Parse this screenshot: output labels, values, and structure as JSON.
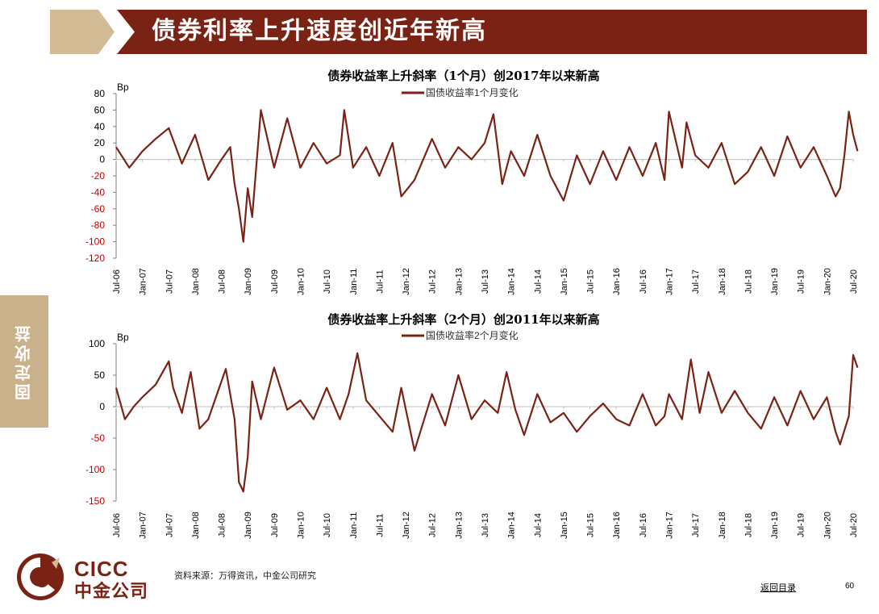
{
  "page": {
    "title": "债券利率上升速度创近年新高",
    "side_tab": "固定收益",
    "source": "资料来源：万得资讯，中金公司研究",
    "back_link": "返回目录",
    "page_number": "60",
    "logo_en": "CICC",
    "logo_cn": "中金公司"
  },
  "colors": {
    "brand": "#7a2315",
    "accent": "#d3bb95",
    "series": "#7a2315",
    "negative_tick": "#c00000"
  },
  "chart_data": [
    {
      "type": "line",
      "title": "债券收益率上升斜率（1个月）创2017年以来新高",
      "ylabel": "Bp",
      "legend_position": "top-center",
      "grid": false,
      "ylim": [
        -120,
        80
      ],
      "yticks": [
        80,
        60,
        40,
        20,
        0,
        -20,
        -40,
        -60,
        -80,
        -100,
        -120
      ],
      "x_tick_labels": [
        "Jul-06",
        "Jan-07",
        "Jul-07",
        "Jan-08",
        "Jul-08",
        "Jan-09",
        "Jul-09",
        "Jan-10",
        "Jul-10",
        "Jan-11",
        "Jul-11",
        "Jan-12",
        "Jul-12",
        "Jan-13",
        "Jul-13",
        "Jan-14",
        "Jul-14",
        "Jan-15",
        "Jul-15",
        "Jan-16",
        "Jul-16",
        "Jan-17",
        "Jul-17",
        "Jan-18",
        "Jul-18",
        "Jan-19",
        "Jul-19",
        "Jan-20",
        "Jul-20"
      ],
      "x": [
        "2006-07",
        "2006-10",
        "2007-01",
        "2007-04",
        "2007-07",
        "2007-10",
        "2008-01",
        "2008-04",
        "2008-07",
        "2008-09",
        "2008-10",
        "2008-11",
        "2008-12",
        "2009-01",
        "2009-02",
        "2009-04",
        "2009-07",
        "2009-10",
        "2010-01",
        "2010-04",
        "2010-07",
        "2010-10",
        "2010-11",
        "2011-01",
        "2011-04",
        "2011-07",
        "2011-10",
        "2011-12",
        "2012-03",
        "2012-07",
        "2012-10",
        "2013-01",
        "2013-04",
        "2013-07",
        "2013-09",
        "2013-11",
        "2014-01",
        "2014-04",
        "2014-07",
        "2014-10",
        "2015-01",
        "2015-04",
        "2015-07",
        "2015-10",
        "2016-01",
        "2016-04",
        "2016-07",
        "2016-10",
        "2016-12",
        "2017-01",
        "2017-04",
        "2017-05",
        "2017-07",
        "2017-10",
        "2018-01",
        "2018-04",
        "2018-07",
        "2018-10",
        "2019-01",
        "2019-04",
        "2019-07",
        "2019-10",
        "2020-01",
        "2020-03",
        "2020-04",
        "2020-05",
        "2020-06",
        "2020-07",
        "2020-08"
      ],
      "series": [
        {
          "name": "国债收益率1个月变化",
          "values": [
            15,
            -10,
            10,
            25,
            38,
            -5,
            30,
            -25,
            0,
            15,
            -30,
            -60,
            -100,
            -35,
            -70,
            60,
            -10,
            50,
            -10,
            20,
            -5,
            5,
            60,
            -10,
            15,
            -20,
            20,
            -45,
            -25,
            25,
            -10,
            15,
            0,
            20,
            55,
            -30,
            10,
            -20,
            30,
            -20,
            -50,
            5,
            -30,
            10,
            -25,
            15,
            -20,
            20,
            -25,
            58,
            -10,
            45,
            5,
            -10,
            20,
            -30,
            -15,
            15,
            -20,
            28,
            -10,
            15,
            -20,
            -45,
            -35,
            5,
            58,
            30,
            10
          ]
        }
      ]
    },
    {
      "type": "line",
      "title": "债券收益率上升斜率（2个月）创2011年以来新高",
      "ylabel": "Bp",
      "legend_position": "top-center",
      "grid": false,
      "ylim": [
        -150,
        100
      ],
      "yticks": [
        100,
        50,
        0,
        -50,
        -100,
        -150
      ],
      "x_tick_labels": [
        "Jul-06",
        "Jan-07",
        "Jul-07",
        "Jan-08",
        "Jul-08",
        "Jan-09",
        "Jul-09",
        "Jan-10",
        "Jul-10",
        "Jan-11",
        "Jul-11",
        "Jan-12",
        "Jul-12",
        "Jan-13",
        "Jul-13",
        "Jan-14",
        "Jul-14",
        "Jan-15",
        "Jul-15",
        "Jan-16",
        "Jul-16",
        "Jan-17",
        "Jul-17",
        "Jan-18",
        "Jul-18",
        "Jan-19",
        "Jul-19",
        "Jan-20",
        "Jul-20"
      ],
      "x": [
        "2006-07",
        "2006-09",
        "2006-11",
        "2007-01",
        "2007-04",
        "2007-07",
        "2007-08",
        "2007-10",
        "2007-12",
        "2008-02",
        "2008-04",
        "2008-06",
        "2008-08",
        "2008-10",
        "2008-11",
        "2008-12",
        "2009-01",
        "2009-02",
        "2009-04",
        "2009-07",
        "2009-10",
        "2010-01",
        "2010-04",
        "2010-07",
        "2010-10",
        "2010-12",
        "2011-02",
        "2011-04",
        "2011-07",
        "2011-10",
        "2011-12",
        "2012-03",
        "2012-07",
        "2012-10",
        "2013-01",
        "2013-04",
        "2013-07",
        "2013-10",
        "2013-12",
        "2014-02",
        "2014-04",
        "2014-07",
        "2014-10",
        "2015-01",
        "2015-04",
        "2015-07",
        "2015-10",
        "2016-01",
        "2016-04",
        "2016-07",
        "2016-10",
        "2016-12",
        "2017-01",
        "2017-04",
        "2017-06",
        "2017-08",
        "2017-10",
        "2018-01",
        "2018-04",
        "2018-07",
        "2018-10",
        "2019-01",
        "2019-04",
        "2019-07",
        "2019-10",
        "2020-01",
        "2020-03",
        "2020-04",
        "2020-06",
        "2020-07",
        "2020-08"
      ],
      "series": [
        {
          "name": "国债收益率2个月变化",
          "values": [
            30,
            -20,
            0,
            15,
            35,
            72,
            30,
            -10,
            55,
            -35,
            -20,
            20,
            60,
            -20,
            -120,
            -135,
            -80,
            40,
            -20,
            62,
            -5,
            10,
            -20,
            30,
            -20,
            20,
            85,
            10,
            -15,
            -40,
            30,
            -70,
            20,
            -30,
            50,
            -20,
            10,
            -10,
            55,
            -5,
            -45,
            20,
            -25,
            -10,
            -40,
            -15,
            5,
            -20,
            -30,
            20,
            -30,
            -15,
            20,
            -20,
            75,
            -10,
            55,
            -10,
            25,
            -10,
            -35,
            15,
            -30,
            25,
            -20,
            15,
            -40,
            -60,
            -15,
            82,
            62
          ]
        }
      ]
    }
  ]
}
